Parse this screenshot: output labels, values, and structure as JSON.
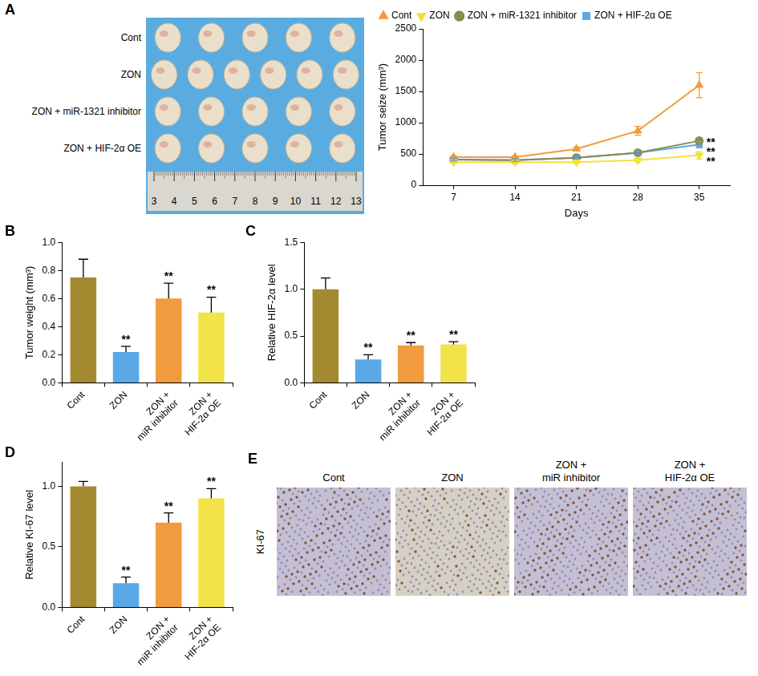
{
  "chart_data": [
    {
      "panel": "A",
      "type": "line",
      "y_label": "Tumor seize (mm³)",
      "x_label": "Days",
      "categories": [
        "7",
        "14",
        "21",
        "28",
        "35"
      ],
      "series": [
        {
          "name": "Cont",
          "color": "#f39a3c",
          "marker": "triangle",
          "values": [
            450,
            450,
            580,
            870,
            1600
          ],
          "errors": [
            20,
            20,
            30,
            70,
            200
          ],
          "significance": [
            null,
            null,
            null,
            null,
            null
          ]
        },
        {
          "name": "ZON",
          "color": "#f2e03c",
          "marker": "triangle-down",
          "values": [
            370,
            370,
            370,
            400,
            480
          ],
          "errors": [
            20,
            20,
            20,
            30,
            60
          ],
          "significance": [
            null,
            null,
            null,
            null,
            "**"
          ]
        },
        {
          "name": "ZON + miR-1321 inhibitor",
          "color": "#8c8a4e",
          "marker": "circle",
          "values": [
            410,
            400,
            440,
            520,
            710
          ],
          "errors": [
            20,
            20,
            20,
            30,
            50
          ],
          "significance": [
            null,
            null,
            null,
            null,
            "**"
          ]
        },
        {
          "name": "ZON + HIF-2α OE",
          "color": "#5aa8e6",
          "marker": "square",
          "values": [
            410,
            400,
            440,
            520,
            650
          ],
          "errors": [
            20,
            20,
            20,
            30,
            50
          ],
          "significance": [
            null,
            null,
            null,
            null,
            "**"
          ]
        }
      ],
      "ylim": [
        0,
        2500
      ],
      "yticks": [
        0,
        500,
        1000,
        1500,
        2000,
        2500
      ],
      "grid": false,
      "legend": "top"
    },
    {
      "panel": "B",
      "type": "bar",
      "y_label": "Tumor weight (mm³)",
      "categories": [
        "Cont",
        "ZON",
        "ZON + miR inhibitor",
        "ZON + HIF-2α OE"
      ],
      "values": [
        0.75,
        0.22,
        0.6,
        0.5
      ],
      "errors": [
        0.13,
        0.04,
        0.11,
        0.11
      ],
      "significance": [
        null,
        "**",
        "**",
        "**"
      ],
      "colors": [
        "#a38a30",
        "#5aa8e6",
        "#f29a3e",
        "#f2e34a"
      ],
      "ylim": [
        0,
        1.0
      ],
      "yticks": [
        {
          "value": 0,
          "label": "0.0"
        },
        0.2,
        0.4,
        0.6,
        0.8,
        {
          "value": 1.0,
          "label": "1.0"
        }
      ],
      "grid": false
    },
    {
      "panel": "C",
      "type": "bar",
      "y_label": "Relative HIF-2α level",
      "categories": [
        "Cont",
        "ZON",
        "ZON + miR inhibitor",
        "ZON + HIF-2α OE"
      ],
      "values": [
        1.0,
        0.25,
        0.4,
        0.41
      ],
      "errors": [
        0.12,
        0.05,
        0.03,
        0.03
      ],
      "significance": [
        null,
        "**",
        "**",
        "**"
      ],
      "colors": [
        "#a38a30",
        "#5aa8e6",
        "#f29a3e",
        "#f2e34a"
      ],
      "ylim": [
        0,
        1.5
      ],
      "yticks": [
        {
          "value": 0,
          "label": "0.0"
        },
        0.5,
        {
          "value": 1.0,
          "label": "1.0"
        },
        1.5
      ],
      "grid": false
    },
    {
      "panel": "D",
      "type": "bar",
      "y_label": "Relative KI-67 level",
      "categories": [
        "Cont",
        "ZON",
        "ZON + miR inhibitor",
        "ZON + HIF-2α OE"
      ],
      "values": [
        1.0,
        0.2,
        0.7,
        0.9
      ],
      "errors": [
        0.04,
        0.05,
        0.08,
        0.08
      ],
      "significance": [
        null,
        "**",
        "**",
        "**"
      ],
      "colors": [
        "#a38a30",
        "#5aa8e6",
        "#f29a3e",
        "#f2e34a"
      ],
      "ylim": [
        0,
        1.2
      ],
      "yticks": [
        {
          "value": 0,
          "label": "0.0"
        },
        0.5,
        {
          "value": 1.0,
          "label": "1.0"
        }
      ],
      "grid": false
    }
  ],
  "photo": {
    "panel": "A",
    "rows": [
      {
        "label": "Cont",
        "count": 5
      },
      {
        "label": "ZON",
        "count": 6
      },
      {
        "label": "ZON + miR-1321 inhibitor",
        "count": 5
      },
      {
        "label": "ZON + HIF-2α OE",
        "count": 5
      }
    ],
    "ruler": [
      3,
      4,
      5,
      6,
      7,
      8,
      9,
      10,
      11,
      12,
      13
    ]
  },
  "histology": {
    "panel": "E",
    "row_label": "KI-67",
    "columns": [
      "Cont",
      "ZON",
      "ZON + miR inhibitor",
      "ZON + HIF-2α OE"
    ]
  }
}
